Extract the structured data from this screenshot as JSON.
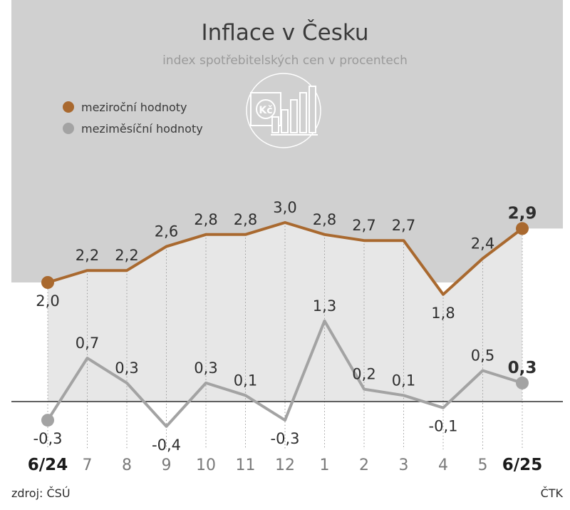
{
  "chart_data": {
    "type": "line",
    "title": "Inflace v Česku",
    "subtitle": "index spotřebitelských cen v procentech",
    "categories": [
      "6/24",
      "7",
      "8",
      "9",
      "10",
      "11",
      "12",
      "1",
      "2",
      "3",
      "4",
      "5",
      "6/25"
    ],
    "bold_categories": [
      "6/24",
      "6/25"
    ],
    "series": [
      {
        "name": "meziroční hodnoty",
        "color": "#a9692f",
        "values": [
          2.0,
          2.2,
          2.2,
          2.6,
          2.8,
          2.8,
          3.0,
          2.8,
          2.7,
          2.7,
          1.8,
          2.4,
          2.9
        ],
        "labels": [
          "2,0",
          "2,2",
          "2,2",
          "2,6",
          "2,8",
          "2,8",
          "3,0",
          "2,8",
          "2,7",
          "2,7",
          "1,8",
          "2,4",
          "2,9"
        ]
      },
      {
        "name": "meziměsíční hodnoty",
        "color": "#a3a3a3",
        "values": [
          -0.3,
          0.7,
          0.3,
          -0.4,
          0.3,
          0.1,
          -0.3,
          1.3,
          0.2,
          0.1,
          -0.1,
          0.5,
          0.3
        ],
        "labels": [
          "-0,3",
          "0,7",
          "0,3",
          "-0,4",
          "0,3",
          "0,1",
          "-0,3",
          "1,3",
          "0,2",
          "0,1",
          "-0,1",
          "0,5",
          "0,3"
        ]
      }
    ],
    "zero_line": true,
    "legend_position": "top-left",
    "grid": false
  },
  "icon": "koruna-bar-chart-icon",
  "footer": {
    "source": "zdroj: ČSÚ",
    "agency": "ČTK"
  }
}
